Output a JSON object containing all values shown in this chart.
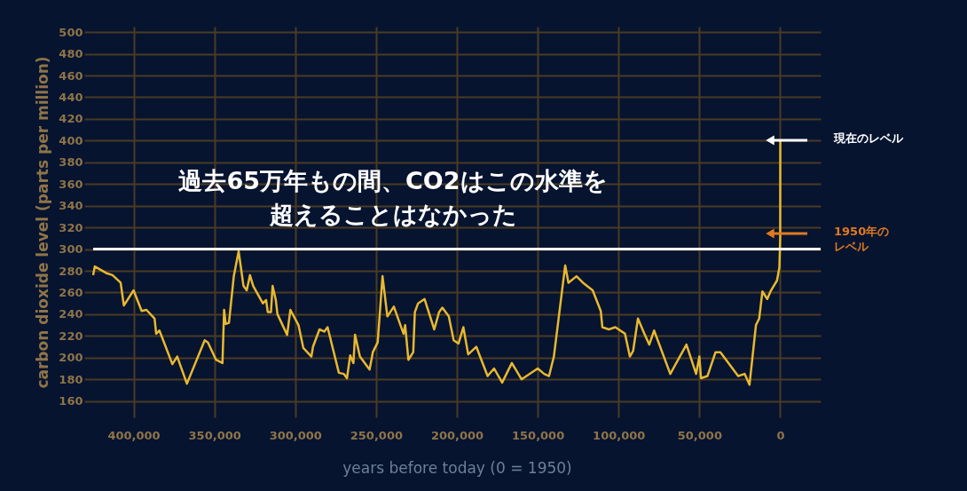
{
  "chart_data": {
    "type": "line",
    "title": "過去65万年もの間、CO2はこの水準を超えることはなかった",
    "xlabel": "years before today (0 = 1950)",
    "ylabel": "carbon dioxide level (parts per million)",
    "x": [
      425000,
      424000,
      417000,
      413000,
      408000,
      406000,
      400000,
      395000,
      392000,
      387000,
      386000,
      384000,
      376000,
      373000,
      367000,
      356000,
      354000,
      349000,
      345000,
      344000,
      343000,
      341000,
      338000,
      335000,
      332000,
      330000,
      328000,
      326000,
      320000,
      318000,
      317000,
      315000,
      314000,
      312000,
      311000,
      305000,
      303000,
      298000,
      295000,
      290000,
      289000,
      285000,
      282000,
      280000,
      273000,
      270000,
      268000,
      266000,
      264000,
      263000,
      260000,
      254000,
      252000,
      249000,
      246000,
      243000,
      239000,
      233000,
      232000,
      230000,
      227000,
      226000,
      224000,
      220000,
      214000,
      211000,
      209000,
      205000,
      202000,
      199000,
      196000,
      193000,
      188000,
      181000,
      177000,
      172000,
      166000,
      160000,
      150000,
      146000,
      143000,
      140000,
      133000,
      131000,
      126000,
      122000,
      116000,
      111000,
      110000,
      106000,
      102000,
      96000,
      93000,
      91000,
      88000,
      84000,
      81000,
      78000,
      68000,
      58000,
      52000,
      50000,
      49000,
      45000,
      40000,
      37000,
      26000,
      22000,
      19000,
      15000,
      13000,
      11000,
      8000,
      6000,
      2000,
      500,
      0,
      -60
    ],
    "series": [
      {
        "color": "#e8b830",
        "values": [
          276,
          284,
          278,
          276,
          269,
          248,
          262,
          243,
          244,
          236,
          222,
          225,
          194,
          201,
          176,
          216,
          214,
          198,
          195,
          244,
          231,
          232,
          275,
          298,
          266,
          262,
          276,
          266,
          250,
          253,
          242,
          242,
          266,
          253,
          240,
          221,
          244,
          230,
          209,
          201,
          210,
          226,
          224,
          228,
          186,
          185,
          181,
          202,
          195,
          221,
          201,
          189,
          205,
          214,
          275,
          238,
          247,
          222,
          230,
          198,
          205,
          242,
          250,
          254,
          226,
          242,
          246,
          238,
          216,
          213,
          228,
          203,
          210,
          183,
          190,
          177,
          195,
          180,
          190,
          185,
          183,
          201,
          285,
          269,
          275,
          269,
          262,
          243,
          228,
          226,
          228,
          222,
          201,
          206,
          236,
          222,
          212,
          225,
          185,
          212,
          185,
          201,
          181,
          183,
          205,
          205,
          183,
          185,
          175,
          230,
          236,
          261,
          254,
          261,
          271,
          283,
          310,
          400
        ]
      }
    ],
    "xlim": [
      425000,
      -25000
    ],
    "xticks": [
      {
        "value": 400000,
        "label": "400,000"
      },
      {
        "value": 350000,
        "label": "350,000"
      },
      {
        "value": 300000,
        "label": "300,000"
      },
      {
        "value": 250000,
        "label": "250,000"
      },
      {
        "value": 200000,
        "label": "200,000"
      },
      {
        "value": 150000,
        "label": "150,000"
      },
      {
        "value": 100000,
        "label": "100,000"
      },
      {
        "value": 50000,
        "label": "50,000"
      },
      0
    ],
    "ylim": [
      145,
      505
    ],
    "yticks": [
      160,
      180,
      200,
      220,
      240,
      260,
      280,
      300,
      320,
      340,
      360,
      380,
      400,
      420,
      440,
      460,
      480,
      500
    ],
    "grid": true,
    "ref_lines": [
      {
        "axis": "y",
        "value": 300,
        "color": "#ffffff"
      }
    ],
    "annotations": [
      "現在のレベル",
      "1950年のレベル"
    ]
  }
}
